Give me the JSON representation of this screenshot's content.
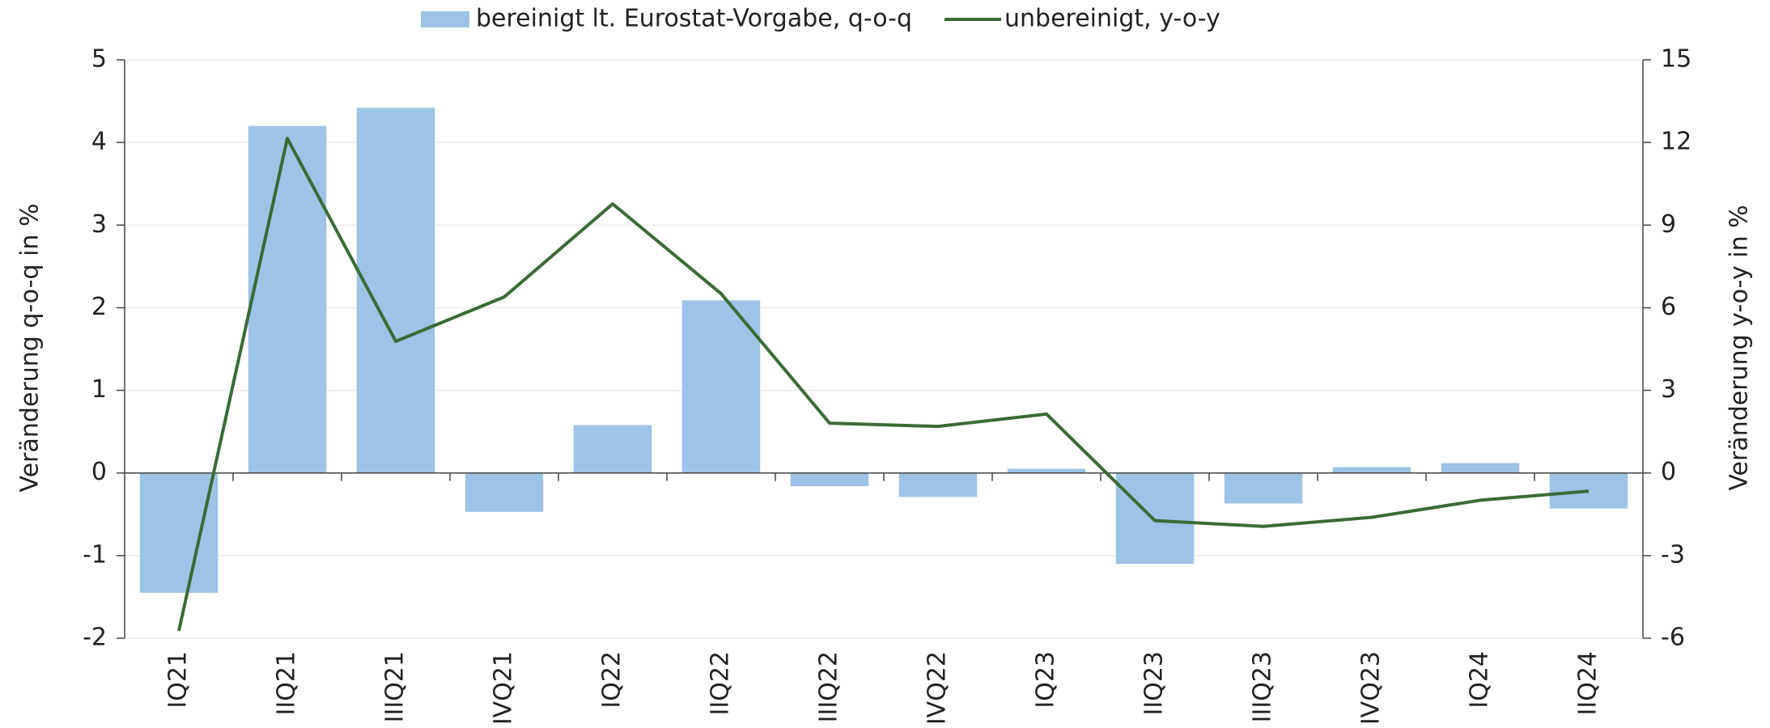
{
  "chart_data": {
    "type": "bar_line",
    "categories": [
      "IQ21",
      "IIQ21",
      "IIIQ21",
      "IVQ21",
      "IQ22",
      "IIQ22",
      "IIIQ22",
      "IVQ22",
      "IQ23",
      "IIQ23",
      "IIIQ23",
      "IVQ23",
      "IQ24",
      "IIQ24"
    ],
    "series": [
      {
        "name": "bereinigt lt. Eurostat-Vorgabe, q-o-q",
        "type": "bar",
        "color": "#9dc3e6",
        "axis": "y",
        "values": [
          -1.45,
          4.2,
          4.42,
          -0.47,
          0.58,
          2.09,
          -0.16,
          -0.29,
          0.05,
          -1.1,
          -0.37,
          0.07,
          0.12,
          -0.43
        ]
      },
      {
        "name": "unbereinigt, y-o-y",
        "type": "line",
        "color": "#3a6b35",
        "axis": "y2",
        "values": [
          -5.73,
          12.15,
          4.78,
          6.39,
          9.77,
          6.51,
          1.81,
          1.69,
          2.14,
          -1.73,
          -1.94,
          -1.61,
          -0.99,
          -0.66
        ]
      }
    ],
    "ylabel": "Veränderung q-o-q in %",
    "y2label": "Veränderung y-o-y in %",
    "ylim": [
      -2,
      5
    ],
    "yticks": [
      -2,
      -1,
      0,
      1,
      2,
      3,
      4,
      5
    ],
    "y2lim": [
      -6,
      15
    ],
    "y2ticks": [
      -6,
      -3,
      0,
      3,
      6,
      9,
      12,
      15
    ],
    "grid": true,
    "legend": "top"
  }
}
